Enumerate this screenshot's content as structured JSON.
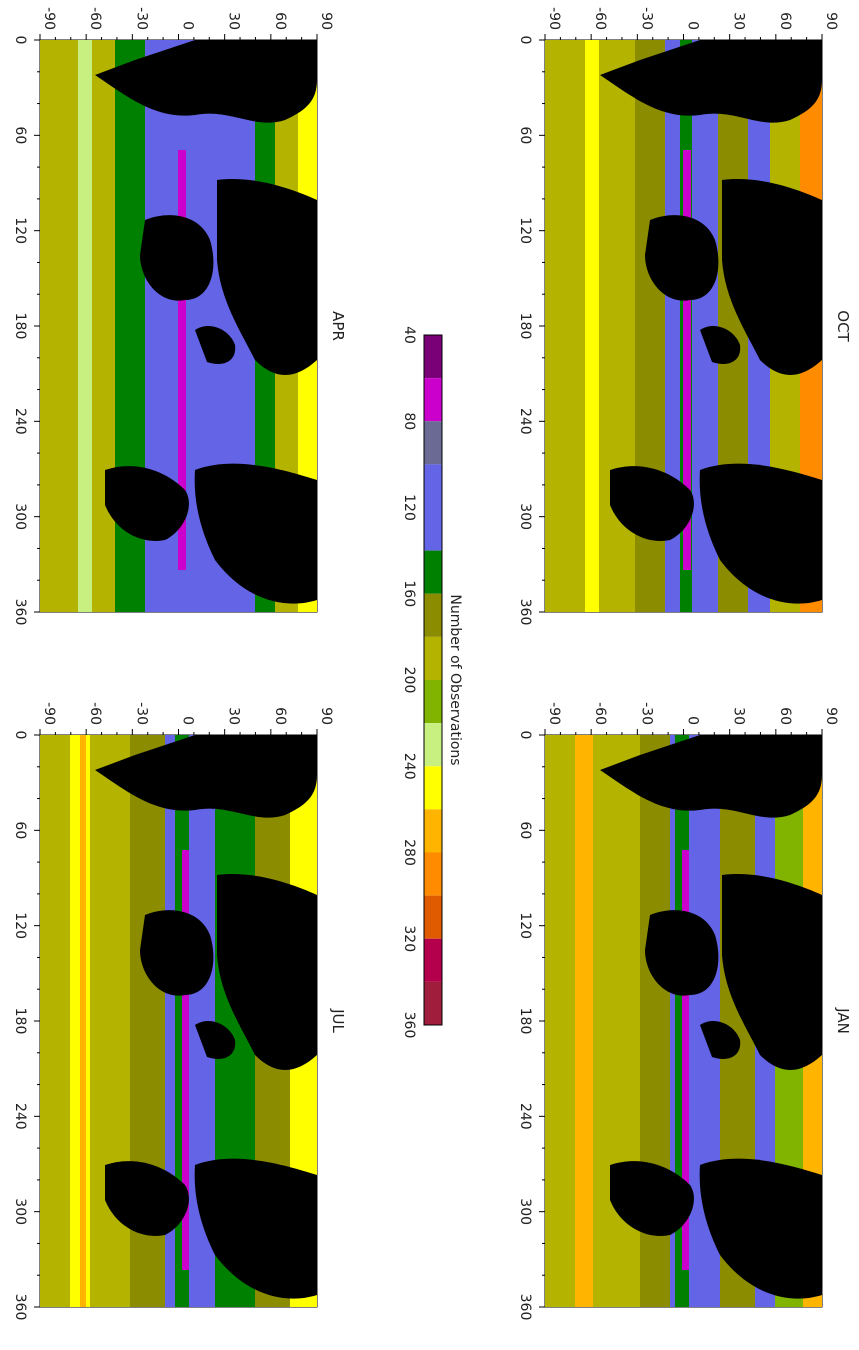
{
  "figure": {
    "colorbar": {
      "title": "Number of Observations",
      "tick_labels": [
        "40",
        "80",
        "120",
        "160",
        "200",
        "240",
        "280",
        "320",
        "360"
      ],
      "bins": [
        {
          "lower": 40,
          "upper": 60,
          "color": "#7a0078"
        },
        {
          "lower": 60,
          "upper": 80,
          "color": "#cc00cc"
        },
        {
          "lower": 80,
          "upper": 100,
          "color": "#6a6a94"
        },
        {
          "lower": 100,
          "upper": 140,
          "color": "#6464e6"
        },
        {
          "lower": 140,
          "upper": 160,
          "color": "#008000"
        },
        {
          "lower": 160,
          "upper": 180,
          "color": "#8c8c00"
        },
        {
          "lower": 180,
          "upper": 200,
          "color": "#b4b400"
        },
        {
          "lower": 200,
          "upper": 220,
          "color": "#80b400"
        },
        {
          "lower": 220,
          "upper": 240,
          "color": "#c8f080"
        },
        {
          "lower": 240,
          "upper": 260,
          "color": "#ffff00"
        },
        {
          "lower": 260,
          "upper": 280,
          "color": "#ffb400"
        },
        {
          "lower": 280,
          "upper": 300,
          "color": "#ff8c00"
        },
        {
          "lower": 300,
          "upper": 320,
          "color": "#e05a00"
        },
        {
          "lower": 320,
          "upper": 340,
          "color": "#b4004c"
        },
        {
          "lower": 340,
          "upper": 360,
          "color": "#a01e3c"
        }
      ]
    },
    "panels": [
      {
        "title": "OCT"
      },
      {
        "title": "JAN"
      },
      {
        "title": "APR"
      },
      {
        "title": "JUL"
      }
    ],
    "axes": {
      "lat_tick_labels": [
        "90",
        "60",
        "30",
        "0",
        "-30",
        "-60",
        "-90"
      ],
      "lon_tick_labels": [
        "0",
        "60",
        "120",
        "180",
        "240",
        "300",
        "360"
      ]
    },
    "colors": {
      "land": "#000000",
      "ocean_low": "#6464e6",
      "equator_band": "#cc00cc",
      "southern_ocean": "#b4b400"
    }
  }
}
